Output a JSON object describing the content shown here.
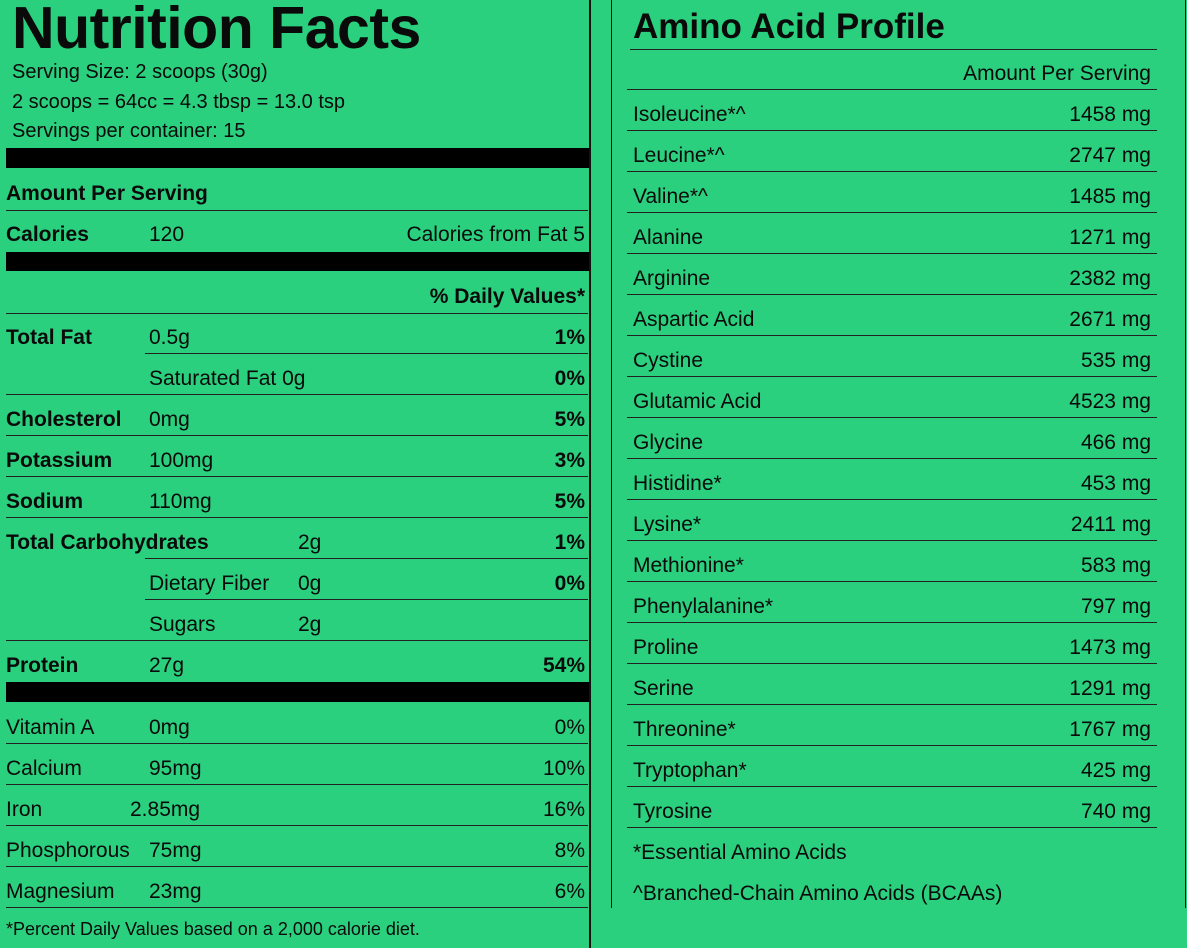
{
  "nutrition": {
    "title": "Nutrition Facts",
    "serving_size": "Serving Size: 2 scoops (30g)",
    "serving_equiv": "2 scoops = 64cc = 4.3 tbsp = 13.0 tsp",
    "servings_per_container": "Servings per container: 15",
    "amount_per_serving": "Amount Per Serving",
    "calories_label": "Calories",
    "calories_value": "120",
    "calories_from_fat": "Calories from Fat 5",
    "daily_values_header": "% Daily Values*",
    "rows": [
      {
        "label": "Total Fat",
        "amount": "0.5g",
        "amount2": "",
        "dv": "1%"
      },
      {
        "label": "Saturated Fat 0g",
        "amount": "",
        "amount2": "",
        "dv": "0%"
      },
      {
        "label": "Cholesterol",
        "amount": "0mg",
        "amount2": "",
        "dv": "5%"
      },
      {
        "label": "Potassium",
        "amount": "100mg",
        "amount2": "",
        "dv": "3%"
      },
      {
        "label": "Sodium",
        "amount": "110mg",
        "amount2": "",
        "dv": "5%"
      },
      {
        "label": "Total Carbohydrates",
        "amount": "",
        "amount2": "2g",
        "dv": "1%"
      },
      {
        "label": "Dietary Fiber",
        "amount": "",
        "amount2": "0g",
        "dv": "0%"
      },
      {
        "label": "Sugars",
        "amount": "",
        "amount2": "2g",
        "dv": ""
      },
      {
        "label": "Protein",
        "amount": "27g",
        "amount2": "",
        "dv": "54%"
      }
    ],
    "minerals": [
      {
        "label": "Vitamin A",
        "amount": "0mg",
        "dv": "0%"
      },
      {
        "label": "Calcium",
        "amount": "95mg",
        "dv": "10%"
      },
      {
        "label": "Iron",
        "amount": "2.85mg",
        "dv": "16%"
      },
      {
        "label": "Phosphorous",
        "amount": "75mg",
        "dv": "8%"
      },
      {
        "label": "Magnesium",
        "amount": "23mg",
        "dv": "6%"
      }
    ],
    "footnote": "*Percent Daily Values based on a 2,000 calorie diet."
  },
  "amino": {
    "title": "Amino Acid Profile",
    "amount_header": "Amount Per Serving",
    "rows": [
      {
        "name": "Isoleucine*^",
        "amount": "1458 mg"
      },
      {
        "name": "Leucine*^",
        "amount": "2747 mg"
      },
      {
        "name": "Valine*^",
        "amount": "1485 mg"
      },
      {
        "name": "Alanine",
        "amount": "1271 mg"
      },
      {
        "name": "Arginine",
        "amount": "2382 mg"
      },
      {
        "name": "Aspartic Acid",
        "amount": "2671 mg"
      },
      {
        "name": "Cystine",
        "amount": "535 mg"
      },
      {
        "name": "Glutamic Acid",
        "amount": "4523 mg"
      },
      {
        "name": "Glycine",
        "amount": "466 mg"
      },
      {
        "name": "Histidine*",
        "amount": "453 mg"
      },
      {
        "name": "Lysine*",
        "amount": "2411 mg"
      },
      {
        "name": "Methionine*",
        "amount": "583 mg"
      },
      {
        "name": "Phenylalanine*",
        "amount": "797 mg"
      },
      {
        "name": "Proline",
        "amount": "1473 mg"
      },
      {
        "name": "Serine",
        "amount": "1291 mg"
      },
      {
        "name": "Threonine*",
        "amount": "1767 mg"
      },
      {
        "name": "Tryptophan*",
        "amount": "425 mg"
      },
      {
        "name": "Tyrosine",
        "amount": "740 mg"
      }
    ],
    "footnote_essential": "*Essential Amino Acids",
    "footnote_bcaa": "^Branched-Chain Amino Acids (BCAAs)"
  },
  "colors": {
    "background": "#2ad07e",
    "text": "#0a0a0a"
  }
}
